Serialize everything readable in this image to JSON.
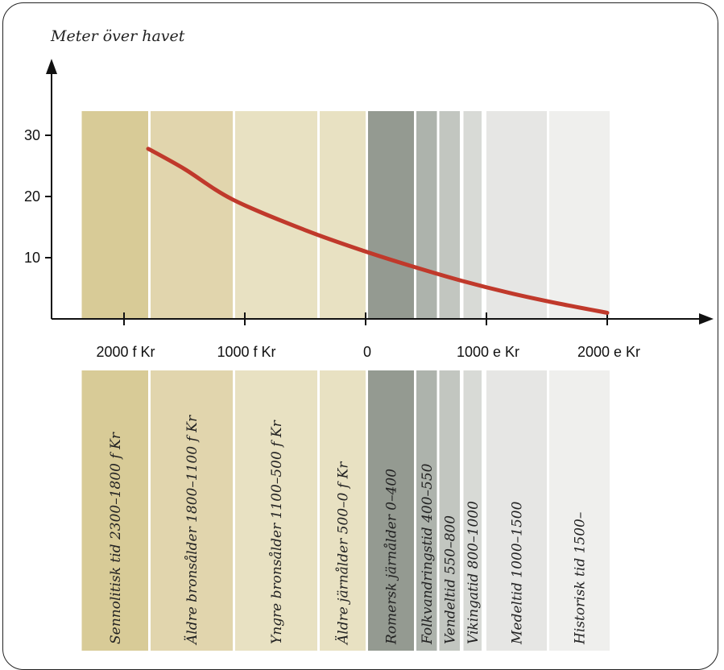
{
  "chart_data": {
    "type": "line",
    "y_title": "Meter över havet",
    "y_ticks": [
      10,
      20,
      30
    ],
    "x_ticks": [
      {
        "value": -2000,
        "label": "2000 f Kr"
      },
      {
        "value": -1000,
        "label": "1000 f Kr"
      },
      {
        "value": 0,
        "label": "0"
      },
      {
        "value": 1000,
        "label": "1000 e Kr"
      },
      {
        "value": 2000,
        "label": "2000 e Kr"
      }
    ],
    "xlim": [
      -2600,
      2200
    ],
    "ylim": [
      0,
      42
    ],
    "series": [
      {
        "color": "#c0392b",
        "points": [
          {
            "x": -1800,
            "y": 27.8
          },
          {
            "x": -1500,
            "y": 24.5
          },
          {
            "x": -1100,
            "y": 19.5
          },
          {
            "x": -500,
            "y": 14.5
          },
          {
            "x": 0,
            "y": 11
          },
          {
            "x": 400,
            "y": 8.5
          },
          {
            "x": 800,
            "y": 6.2
          },
          {
            "x": 1200,
            "y": 4.2
          },
          {
            "x": 1600,
            "y": 2.5
          },
          {
            "x": 2000,
            "y": 1
          }
        ]
      }
    ],
    "periods": [
      {
        "label": "Sennolitisk tid 2300–1800 f Kr",
        "start": -2350,
        "end": -1800,
        "color": "#d8cb97"
      },
      {
        "label": "Äldre bronsålder 1800–1100 f Kr",
        "start": -1780,
        "end": -1100,
        "color": "#e1d5ad"
      },
      {
        "label": "Yngre bronsålder 1100–500 f Kr",
        "start": -1080,
        "end": -400,
        "color": "#e8e1c2"
      },
      {
        "label": "Äldre järnålder 500–0 f Kr",
        "start": -380,
        "end": 0,
        "color": "#e8e1c2"
      },
      {
        "label": "Romersk järnålder 0–400",
        "start": 20,
        "end": 400,
        "color": "#949a91"
      },
      {
        "label": "Folkvandringstid 400–550",
        "start": 420,
        "end": 590,
        "color": "#adb3ac"
      },
      {
        "label": "Vendeltid 550–800",
        "start": 610,
        "end": 780,
        "color": "#c2c6c0"
      },
      {
        "label": "Vikingatid 800–1000",
        "start": 810,
        "end": 960,
        "color": "#d8dad6"
      },
      {
        "label": "Medeltid 1000–1500",
        "start": 1000,
        "end": 1500,
        "color": "#e6e6e4"
      },
      {
        "label": "Historisk tid 1500–",
        "start": 1520,
        "end": 2020,
        "color": "#efefed"
      }
    ]
  }
}
